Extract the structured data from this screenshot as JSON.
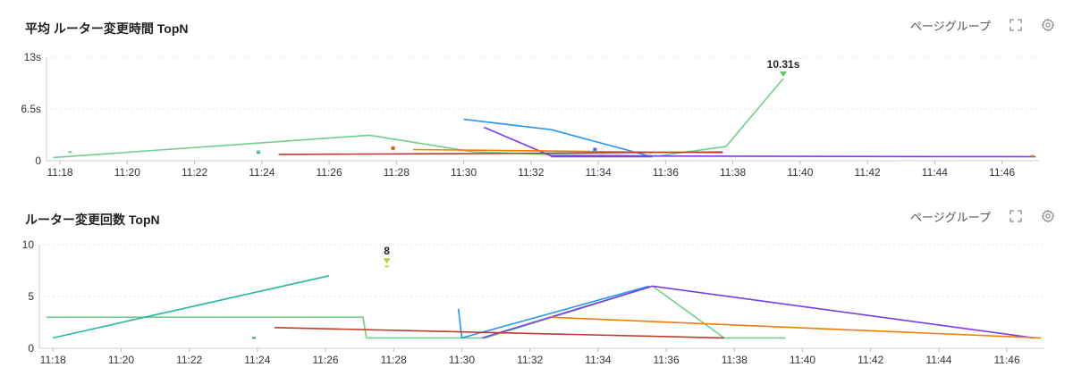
{
  "chart_data": [
    {
      "type": "line",
      "title": "平均 ルーター変更時間 TopN",
      "page_group_label": "ページグループ",
      "x_ticks": [
        "11:18",
        "11:20",
        "11:22",
        "11:24",
        "11:26",
        "11:28",
        "11:30",
        "11:32",
        "11:34",
        "11:36",
        "11:38",
        "11:40",
        "11:42",
        "11:44",
        "11:46"
      ],
      "x_range": [
        17.6,
        47.1
      ],
      "y_ticks": [
        "0",
        "6.5s",
        "13s"
      ],
      "y_tick_values": [
        0,
        6.5,
        13
      ],
      "ylim": [
        0,
        13
      ],
      "grid": "horizontal",
      "annotation": {
        "text": "10.31s",
        "x": 39.5,
        "y": 10.31,
        "color": "#5ec95e"
      },
      "series": [
        {
          "color": "#6fd08c",
          "points": [
            [
              17.8,
              0.4
            ],
            [
              27.2,
              3.2
            ],
            [
              30.3,
              1.1
            ],
            [
              32.6,
              0.8
            ],
            [
              35.8,
              0.6
            ],
            [
              37.8,
              1.8
            ],
            [
              39.5,
              10.31
            ]
          ]
        },
        {
          "color": "#2196f3",
          "points": [
            [
              30.0,
              5.2
            ],
            [
              32.6,
              3.9
            ],
            [
              35.6,
              0.5
            ]
          ]
        },
        {
          "color": "#7c3aed",
          "points": [
            [
              30.6,
              4.2
            ],
            [
              32.6,
              0.6
            ],
            [
              47.0,
              0.5
            ]
          ]
        },
        {
          "color": "#f57c00",
          "points": [
            [
              28.5,
              1.4
            ],
            [
              37.7,
              1.0
            ]
          ]
        },
        {
          "color": "#c0392b",
          "points": [
            [
              24.5,
              0.8
            ],
            [
              30.3,
              0.9
            ],
            [
              37.7,
              1.1
            ]
          ]
        },
        {
          "color": "#8e44ad",
          "points": [
            [
              32.6,
              0.5
            ],
            [
              35.6,
              0.5
            ]
          ]
        }
      ],
      "markers": [
        {
          "x": 18.3,
          "y": 1.1,
          "color": "#7ccf8f"
        },
        {
          "x": 23.9,
          "y": 1.0,
          "color": "#26a69a"
        },
        {
          "x": 23.9,
          "y": 1.2,
          "color": "#7ccf8f"
        },
        {
          "x": 27.9,
          "y": 1.5,
          "color": "#c0392b"
        },
        {
          "x": 27.9,
          "y": 1.7,
          "color": "#ef6c00"
        },
        {
          "x": 33.9,
          "y": 1.3,
          "color": "#2196f3"
        },
        {
          "x": 33.9,
          "y": 1.5,
          "color": "#7c3aed"
        },
        {
          "x": 46.9,
          "y": 0.6,
          "color": "#f57c00"
        }
      ]
    },
    {
      "type": "line",
      "title": "ルーター変更回数 TopN",
      "page_group_label": "ページグループ",
      "x_ticks": [
        "11:18",
        "11:20",
        "11:22",
        "11:24",
        "11:26",
        "11:28",
        "11:30",
        "11:32",
        "11:34",
        "11:36",
        "11:38",
        "11:40",
        "11:42",
        "11:44",
        "11:46"
      ],
      "x_range": [
        17.6,
        47.1
      ],
      "y_ticks": [
        "0",
        "5",
        "10"
      ],
      "y_tick_values": [
        0,
        5,
        10
      ],
      "ylim": [
        0,
        10
      ],
      "grid": "horizontal",
      "annotation": {
        "text": "8",
        "x": 27.8,
        "y": 8,
        "color": "#c0ca33"
      },
      "series": [
        {
          "color": "#6fd08c",
          "points": [
            [
              17.8,
              3
            ],
            [
              27.1,
              3
            ],
            [
              27.2,
              1
            ],
            [
              30.7,
              1
            ],
            [
              35.6,
              6
            ],
            [
              37.7,
              1
            ],
            [
              39.5,
              1
            ]
          ]
        },
        {
          "color": "#26b6a3",
          "points": [
            [
              18.0,
              1
            ],
            [
              26.1,
              7
            ]
          ]
        },
        {
          "color": "#2196f3",
          "points": [
            [
              29.9,
              3.8
            ],
            [
              30.0,
              1
            ],
            [
              35.5,
              6
            ]
          ]
        },
        {
          "color": "#7c3aed",
          "points": [
            [
              30.6,
              1
            ],
            [
              35.6,
              6
            ],
            [
              46.8,
              1
            ]
          ]
        },
        {
          "color": "#f57c00",
          "points": [
            [
              32.6,
              3
            ],
            [
              47.0,
              1
            ]
          ]
        },
        {
          "color": "#c0392b",
          "points": [
            [
              24.5,
              2
            ],
            [
              37.7,
              1
            ]
          ]
        }
      ],
      "markers": [
        {
          "x": 23.9,
          "y": 1,
          "color": "#26a69a"
        },
        {
          "x": 27.8,
          "y": 7.9,
          "color": "#c0ca33"
        }
      ]
    }
  ]
}
